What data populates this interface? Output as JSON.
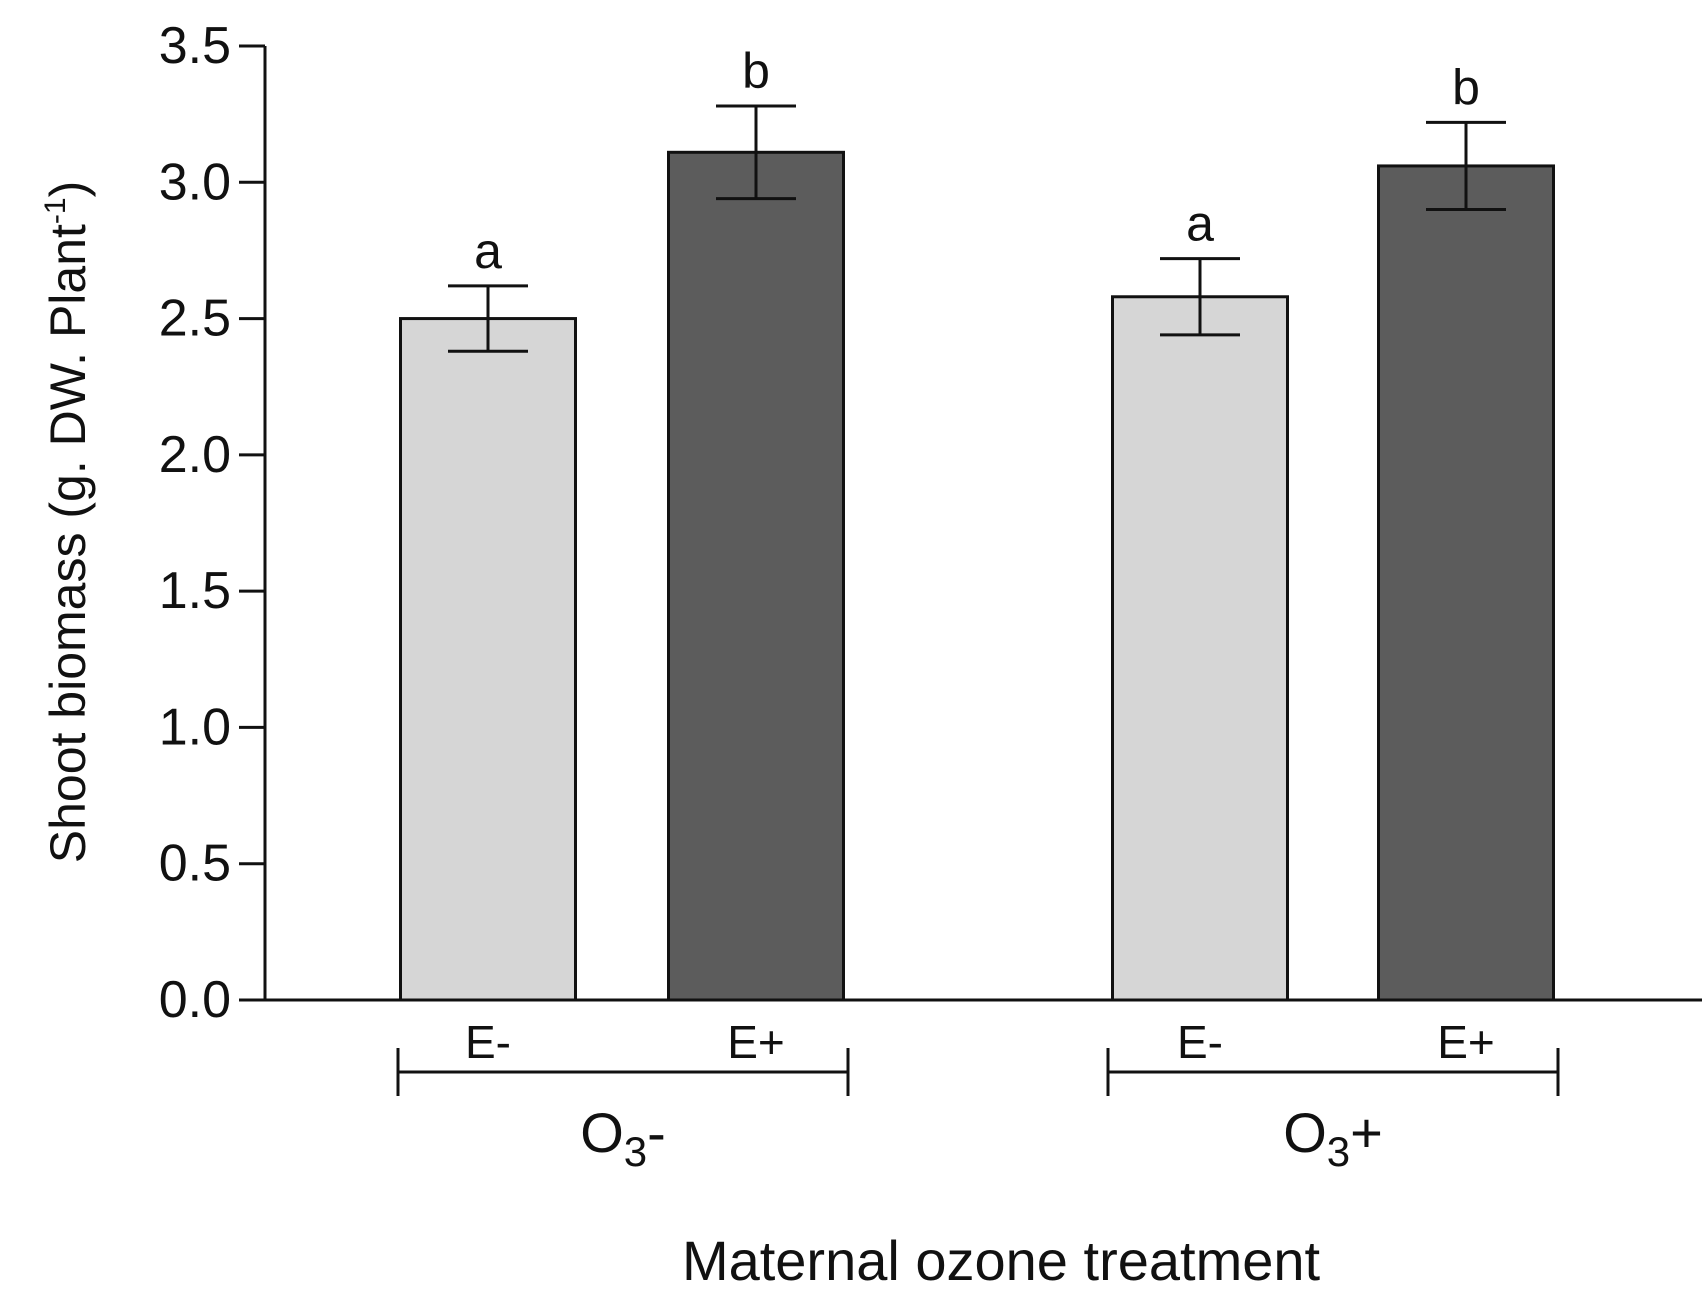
{
  "chart_data": {
    "type": "bar",
    "xlabel": "Maternal ozone treatment",
    "ylabel": {
      "text": "Shoot biomass (g. DW. Plant",
      "superscript": "-1",
      "close": ")"
    },
    "ylim": [
      0,
      3.5
    ],
    "y_ticks": [
      "0.0",
      "0.5",
      "1.0",
      "1.5",
      "2.0",
      "2.5",
      "3.0",
      "3.5"
    ],
    "grid": false,
    "legend": null,
    "groups": [
      {
        "label_base": "O",
        "label_sub": "3",
        "label_sign": "-",
        "bars": [
          {
            "category": "E-",
            "value": 2.5,
            "error": 0.12,
            "letter": "a",
            "color": "#d6d6d6"
          },
          {
            "category": "E+",
            "value": 3.11,
            "error": 0.17,
            "letter": "b",
            "color": "#5c5c5c"
          }
        ]
      },
      {
        "label_base": "O",
        "label_sub": "3",
        "label_sign": "+",
        "bars": [
          {
            "category": "E-",
            "value": 2.58,
            "error": 0.14,
            "letter": "a",
            "color": "#d6d6d6"
          },
          {
            "category": "E+",
            "value": 3.06,
            "error": 0.16,
            "letter": "b",
            "color": "#5c5c5c"
          }
        ]
      }
    ]
  }
}
